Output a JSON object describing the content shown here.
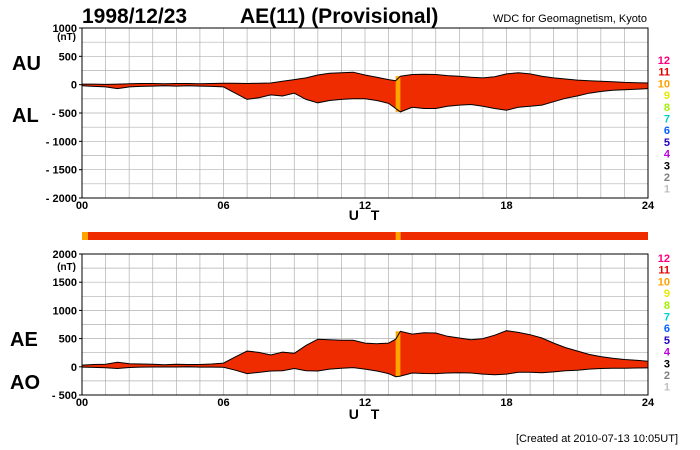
{
  "header": {
    "date": "1998/12/23",
    "title": "AE(11) (Provisional)",
    "organization": "WDC for Geomagnetism, Kyoto"
  },
  "footer": "[Created at 2010-07-13 10:05UT]",
  "legend": {
    "labels": [
      "12",
      "11",
      "10",
      "9",
      "8",
      "7",
      "6",
      "5",
      "4",
      "3",
      "2",
      "1"
    ],
    "colors": [
      "#ff0080",
      "#e00000",
      "#ffa000",
      "#e8e800",
      "#a0f000",
      "#00d0d0",
      "#0060ff",
      "#2000c0",
      "#c000e0",
      "#000000",
      "#808080",
      "#c0c0c0"
    ]
  },
  "station_bar": {
    "main_color": "#ee2c00",
    "alt_color": "#ffa500"
  },
  "chart_data": [
    {
      "type": "area",
      "panel": "upper",
      "upper_label": "AU",
      "lower_label": "AL",
      "ylabel": "(nT)",
      "xlabel": "U T",
      "ylim": [
        -2000,
        1000
      ],
      "y_ticks": [
        1000,
        500,
        0,
        -500,
        -1000,
        -1500,
        -2000
      ],
      "y_tick_labels": [
        "1000",
        "500",
        "0",
        "- 500",
        "- 1000",
        "- 1500",
        "- 2000"
      ],
      "x_ticks": [
        0,
        6,
        12,
        18,
        24
      ],
      "x_tick_labels": [
        "00",
        "06",
        "12",
        "18",
        "24"
      ],
      "grid": true,
      "fill_color": "#ee2c00",
      "highlight": {
        "from_hour": 13.3,
        "to_hour": 13.5,
        "color": "#ffa500"
      },
      "series": [
        {
          "name": "AU",
          "x": [
            0,
            0.5,
            1,
            1.5,
            2,
            2.5,
            3,
            3.5,
            4,
            4.5,
            5,
            5.5,
            6,
            6.5,
            7,
            7.5,
            8,
            8.5,
            9,
            9.5,
            10,
            10.5,
            11,
            11.5,
            12,
            12.5,
            13,
            13.3,
            13.5,
            14,
            14.5,
            15,
            15.5,
            16,
            16.5,
            17,
            17.5,
            18,
            18.5,
            19,
            19.5,
            20,
            20.5,
            21,
            21.5,
            22,
            22.5,
            23,
            23.5,
            24
          ],
          "values": [
            10,
            10,
            5,
            10,
            15,
            20,
            20,
            15,
            20,
            20,
            15,
            20,
            25,
            25,
            20,
            25,
            30,
            60,
            90,
            120,
            170,
            200,
            210,
            220,
            170,
            130,
            90,
            70,
            150,
            180,
            185,
            180,
            160,
            150,
            130,
            120,
            140,
            190,
            210,
            190,
            150,
            120,
            100,
            80,
            70,
            60,
            50,
            40,
            35,
            30
          ]
        },
        {
          "name": "AL",
          "x": [
            0,
            0.5,
            1,
            1.5,
            2,
            2.5,
            3,
            3.5,
            4,
            4.5,
            5,
            5.5,
            6,
            6.5,
            7,
            7.5,
            8,
            8.5,
            9,
            9.5,
            10,
            10.5,
            11,
            11.5,
            12,
            12.5,
            13,
            13.3,
            13.5,
            14,
            14.5,
            15,
            15.5,
            16,
            16.5,
            17,
            17.5,
            18,
            18.5,
            19,
            19.5,
            20,
            20.5,
            21,
            21.5,
            22,
            22.5,
            23,
            23.5,
            24
          ],
          "values": [
            -20,
            -30,
            -40,
            -70,
            -40,
            -30,
            -25,
            -20,
            -25,
            -20,
            -25,
            -30,
            -40,
            -150,
            -260,
            -230,
            -180,
            -200,
            -150,
            -260,
            -320,
            -280,
            -260,
            -250,
            -250,
            -280,
            -330,
            -420,
            -480,
            -400,
            -420,
            -420,
            -380,
            -360,
            -350,
            -380,
            -420,
            -450,
            -400,
            -380,
            -360,
            -300,
            -240,
            -200,
            -150,
            -120,
            -100,
            -90,
            -80,
            -70
          ]
        }
      ]
    },
    {
      "type": "area",
      "panel": "lower",
      "upper_label": "AE",
      "lower_label": "AO",
      "ylabel": "(nT)",
      "xlabel": "U T",
      "ylim": [
        -500,
        2000
      ],
      "y_ticks": [
        2000,
        1500,
        1000,
        500,
        0,
        -500
      ],
      "y_tick_labels": [
        "2000",
        "1500",
        "1000",
        "500",
        "0",
        "- 500"
      ],
      "x_ticks": [
        0,
        6,
        12,
        18,
        24
      ],
      "x_tick_labels": [
        "00",
        "06",
        "12",
        "18",
        "24"
      ],
      "grid": true,
      "fill_color": "#ee2c00",
      "highlight": {
        "from_hour": 13.3,
        "to_hour": 13.5,
        "color": "#ffa500"
      },
      "series": [
        {
          "name": "AE",
          "x": [
            0,
            0.5,
            1,
            1.5,
            2,
            2.5,
            3,
            3.5,
            4,
            4.5,
            5,
            5.5,
            6,
            6.5,
            7,
            7.5,
            8,
            8.5,
            9,
            9.5,
            10,
            10.5,
            11,
            11.5,
            12,
            12.5,
            13,
            13.3,
            13.5,
            14,
            14.5,
            15,
            15.5,
            16,
            16.5,
            17,
            17.5,
            18,
            18.5,
            19,
            19.5,
            20,
            20.5,
            21,
            21.5,
            22,
            22.5,
            23,
            23.5,
            24
          ],
          "values": [
            30,
            40,
            45,
            80,
            55,
            50,
            45,
            35,
            45,
            40,
            40,
            50,
            65,
            175,
            280,
            255,
            210,
            260,
            240,
            380,
            490,
            480,
            470,
            470,
            420,
            410,
            420,
            490,
            630,
            580,
            605,
            600,
            540,
            510,
            480,
            500,
            560,
            640,
            610,
            570,
            510,
            420,
            340,
            280,
            220,
            180,
            150,
            130,
            115,
            100
          ]
        },
        {
          "name": "AO",
          "x": [
            0,
            0.5,
            1,
            1.5,
            2,
            2.5,
            3,
            3.5,
            4,
            4.5,
            5,
            5.5,
            6,
            6.5,
            7,
            7.5,
            8,
            8.5,
            9,
            9.5,
            10,
            10.5,
            11,
            11.5,
            12,
            12.5,
            13,
            13.3,
            13.5,
            14,
            14.5,
            15,
            15.5,
            16,
            16.5,
            17,
            17.5,
            18,
            18.5,
            19,
            19.5,
            20,
            20.5,
            21,
            21.5,
            22,
            22.5,
            23,
            23.5,
            24
          ],
          "values": [
            -5,
            -10,
            -18,
            -30,
            -12,
            -5,
            -3,
            -3,
            -3,
            0,
            -5,
            -5,
            -8,
            -60,
            -120,
            -100,
            -75,
            -70,
            -30,
            -70,
            -75,
            -40,
            -25,
            -15,
            -40,
            -75,
            -120,
            -175,
            -165,
            -110,
            -118,
            -120,
            -110,
            -105,
            -110,
            -130,
            -140,
            -130,
            -95,
            -95,
            -105,
            -90,
            -70,
            -60,
            -40,
            -30,
            -25,
            -25,
            -22,
            -20
          ]
        }
      ]
    }
  ]
}
